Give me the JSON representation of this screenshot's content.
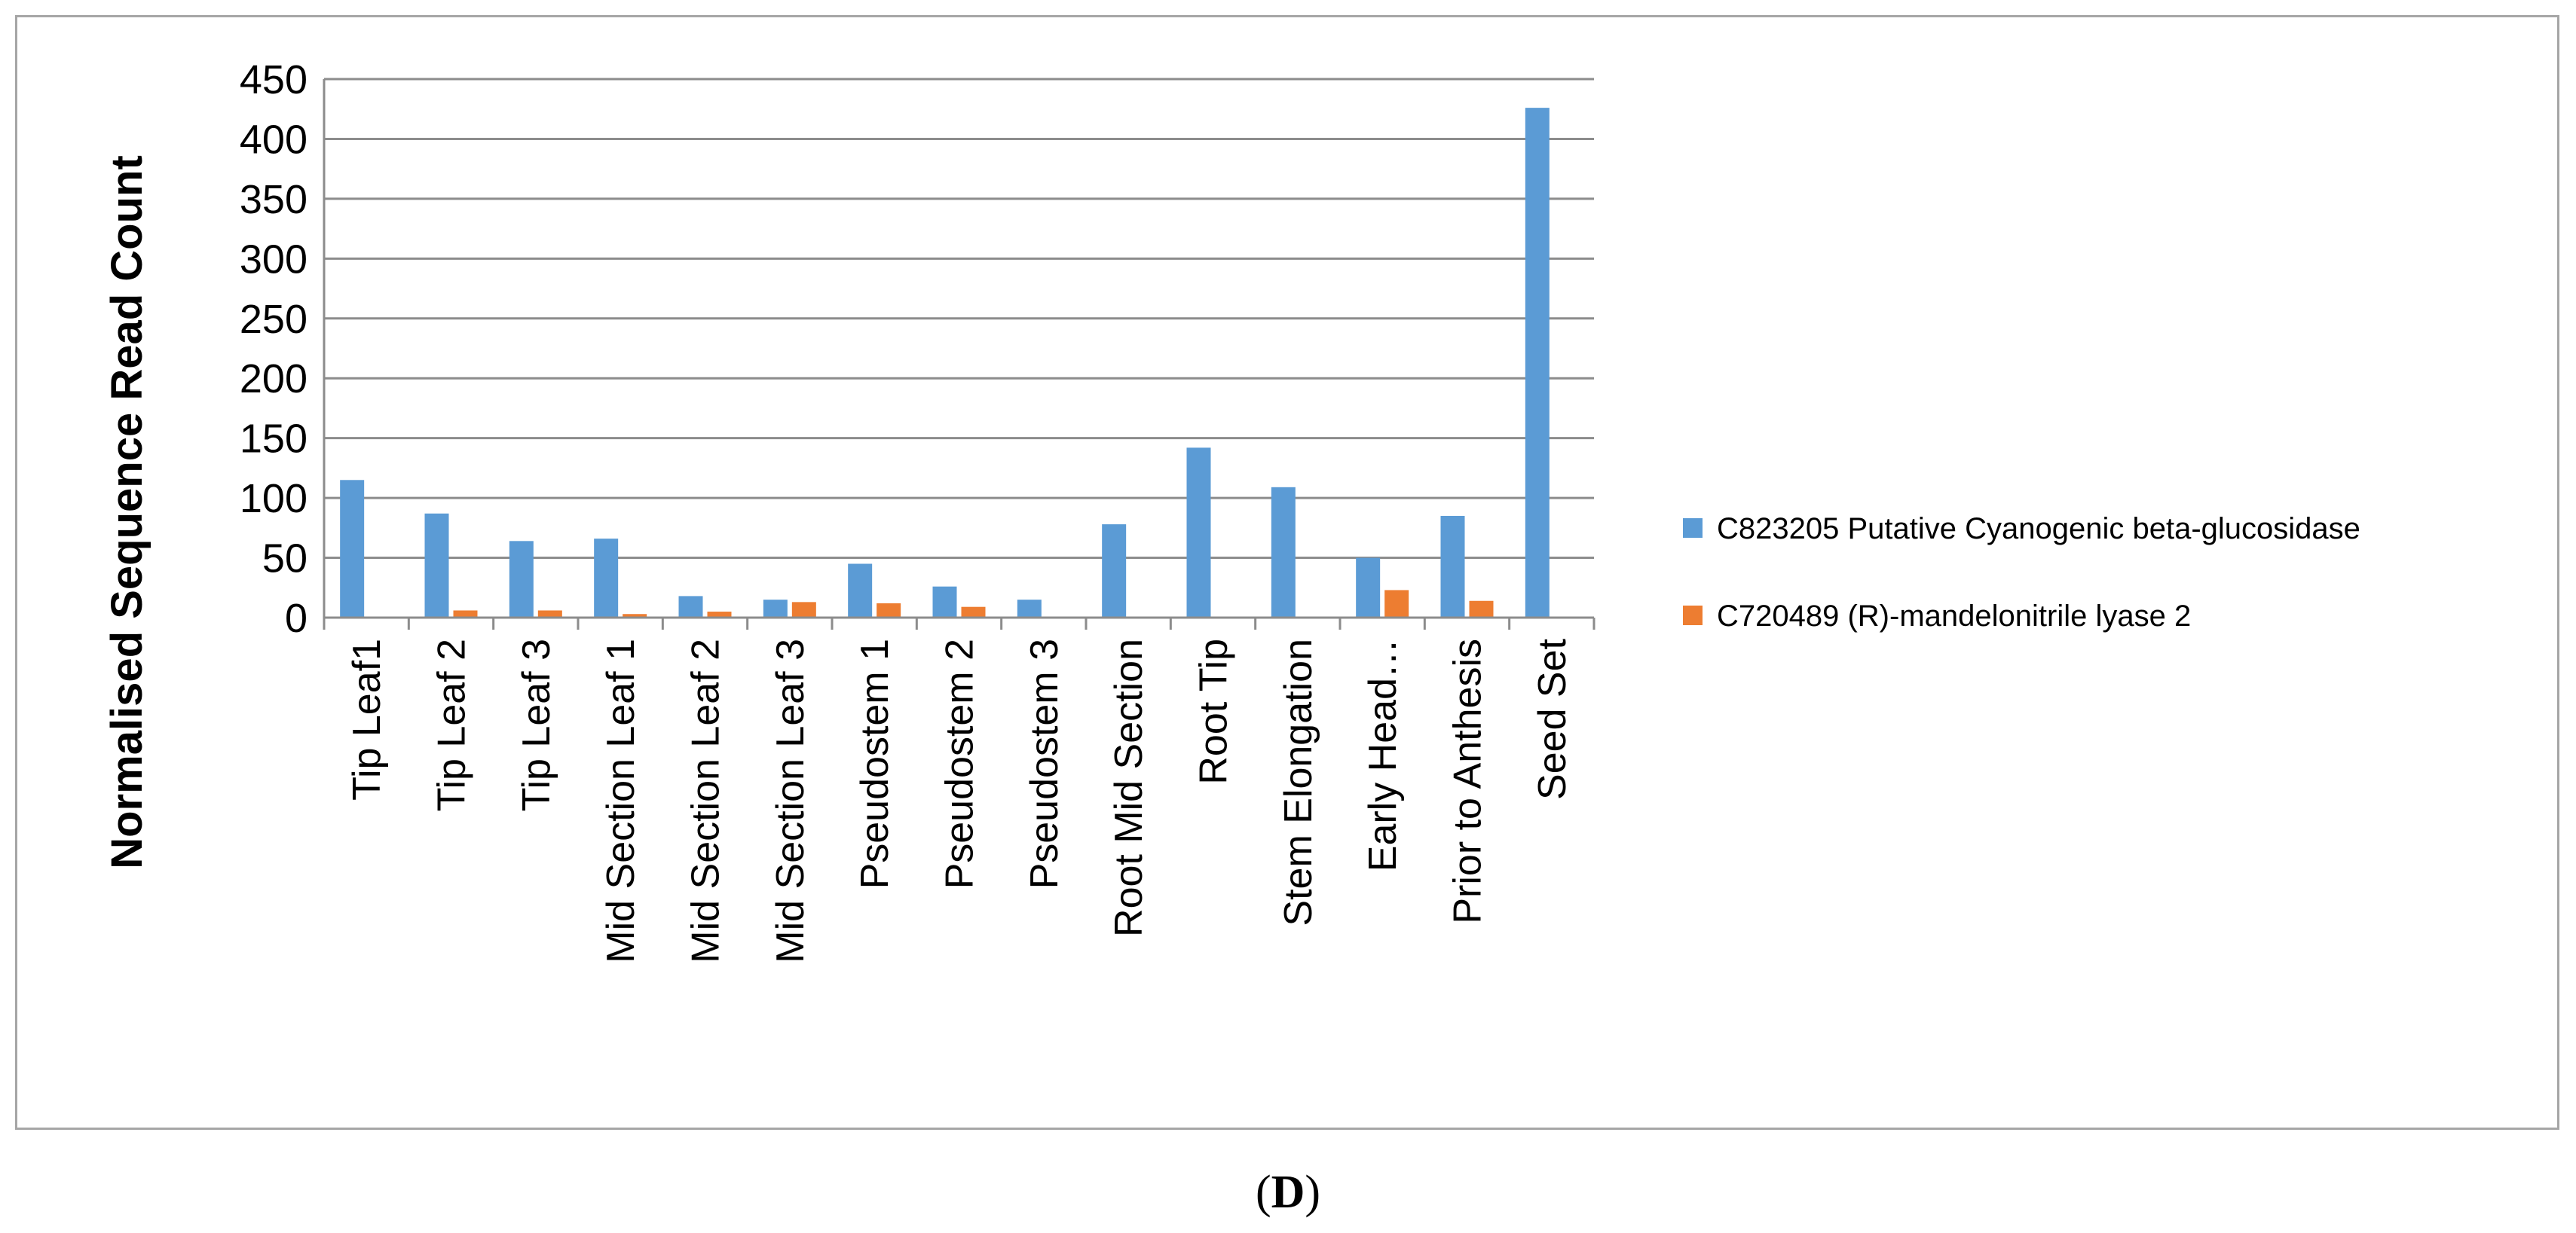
{
  "panel_label": {
    "open": "(",
    "letter": "D",
    "close": ")"
  },
  "chart_data": {
    "type": "bar",
    "title": "",
    "xlabel": "",
    "ylabel": "Normalised Sequence Read Count",
    "ylim": [
      0,
      450
    ],
    "ytick_step": 50,
    "yticks": [
      "0",
      "50",
      "100",
      "150",
      "200",
      "250",
      "300",
      "350",
      "400",
      "450"
    ],
    "grid": true,
    "legend_position": "right",
    "categories": [
      "Tip Leaf1",
      "Tip Leaf 2",
      "Tip Leaf 3",
      "Mid Section Leaf 1",
      "Mid Section Leaf 2",
      "Mid Section Leaf 3",
      "Pseudostem 1",
      "Pseudostem 2",
      "Pseudostem 3",
      "Root Mid Section",
      "Root Tip",
      "Stem Elongation",
      "Early Head…",
      "Prior to Anthesis",
      "Seed Set"
    ],
    "series": [
      {
        "name": "C823205 Putative Cyanogenic beta-glucosidase",
        "color": "#5b9bd5",
        "values": [
          115,
          87,
          64,
          66,
          18,
          15,
          45,
          26,
          15,
          78,
          142,
          109,
          50,
          85,
          426
        ]
      },
      {
        "name": "C720489 (R)-mandelonitrile lyase 2",
        "color": "#ed7d31",
        "values": [
          0,
          6,
          6,
          3,
          5,
          13,
          12,
          9,
          0,
          0,
          0,
          0,
          23,
          14,
          0
        ]
      }
    ]
  }
}
